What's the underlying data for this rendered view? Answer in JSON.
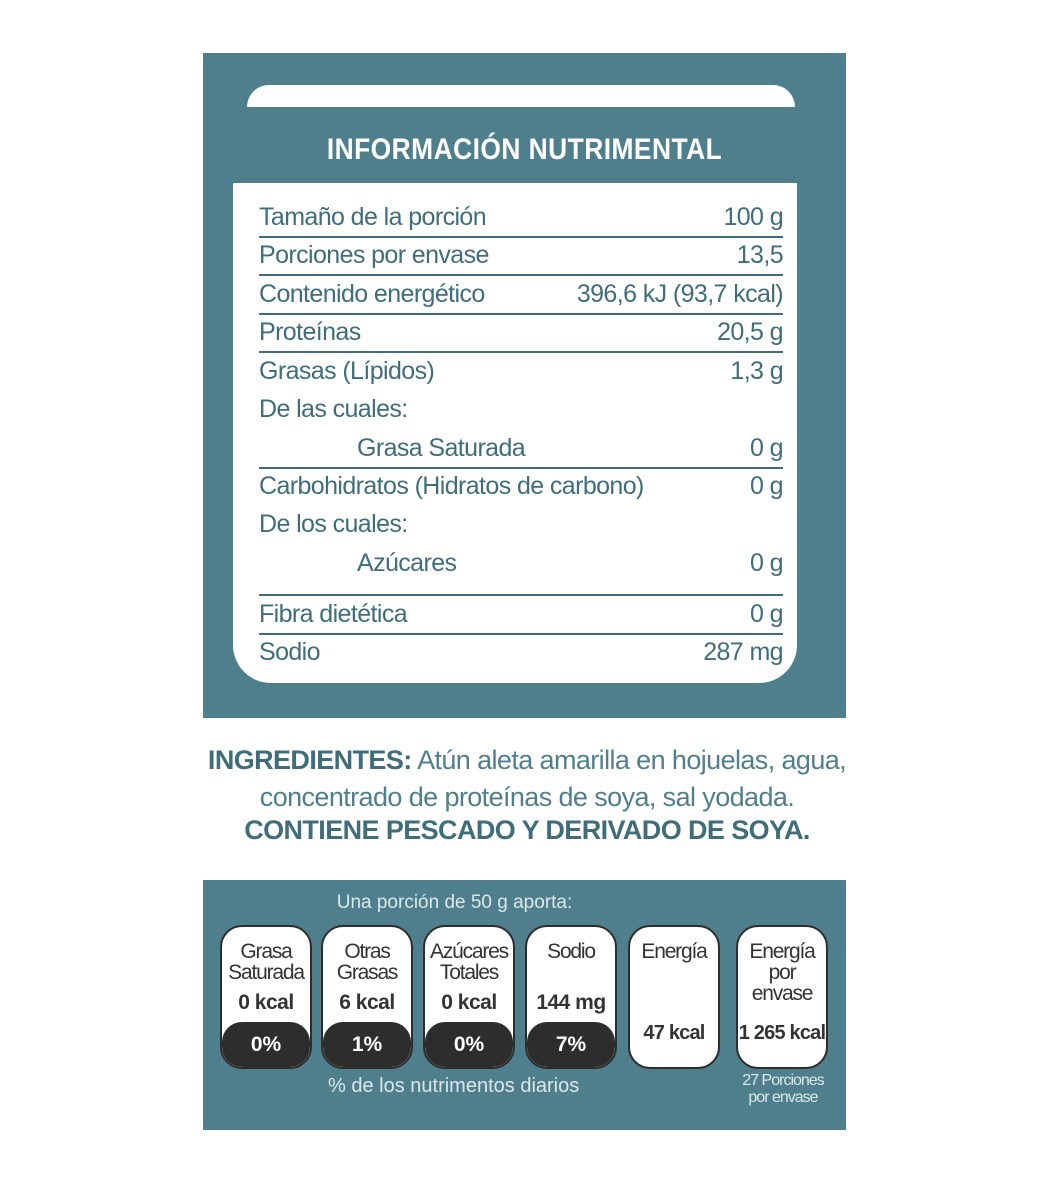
{
  "colors": {
    "brand_teal": "#4f7f8c",
    "text_teal": "#3f6e7a",
    "pill_dark": "#2d2d2d"
  },
  "nutrition": {
    "title": "INFORMACIÓN NUTRIMENTAL",
    "rows": [
      {
        "label": "Tamaño de la porción",
        "value": "100 g"
      },
      {
        "label": "Porciones por envase",
        "value": "13,5"
      },
      {
        "label": "Contenido energético",
        "value": "396,6 kJ (93,7 kcal)"
      },
      {
        "label": "Proteínas",
        "value": "20,5 g"
      },
      {
        "label": "Grasas (Lípidos)",
        "value": "1,3 g"
      },
      {
        "label": "De las cuales:",
        "value": ""
      },
      {
        "label": "Grasa Saturada",
        "value": "0 g"
      },
      {
        "label": "Carbohidratos (Hidratos de carbono)",
        "value": "0 g"
      },
      {
        "label": "De los cuales:",
        "value": ""
      },
      {
        "label": "Azúcares",
        "value": "0 g"
      },
      {
        "label": "Fibra dietética",
        "value": "0 g"
      },
      {
        "label": "Sodio",
        "value": "287 mg"
      }
    ]
  },
  "ingredients": {
    "heading": "INGREDIENTES:",
    "line1": "Atún aleta amarilla en hojuelas, agua,",
    "line2": "concentrado de proteínas de soya, sal yodada.",
    "allergens": "CONTIENE PESCADO Y DERIVADO DE SOYA."
  },
  "gda": {
    "header": "Una porción de 50 g aporta:",
    "cards": [
      {
        "name1": "Grasa",
        "name2": "Saturada",
        "amount": "0 kcal",
        "percent": "0%"
      },
      {
        "name1": "Otras",
        "name2": "Grasas",
        "amount": "6 kcal",
        "percent": "1%"
      },
      {
        "name1": "Azúcares",
        "name2": "Totales",
        "amount": "0 kcal",
        "percent": "0%"
      },
      {
        "name1": "Sodio",
        "name2": "",
        "amount": "144 mg",
        "percent": "7%"
      }
    ],
    "energy": {
      "name": "Energía",
      "amount": "47 kcal"
    },
    "energy_pack": {
      "name1": "Energía",
      "name2": "por",
      "name3": "envase",
      "amount": "1 265 kcal"
    },
    "footer": "% de los nutrimentos diarios",
    "portions1": "27 Porciones",
    "portions2": "por envase"
  }
}
